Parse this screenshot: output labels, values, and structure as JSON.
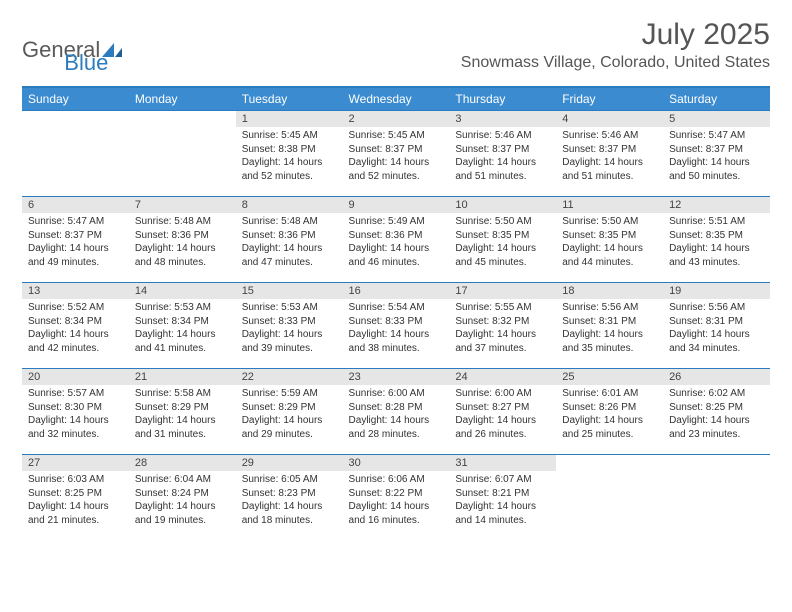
{
  "logo": {
    "general": "General",
    "blue": "Blue"
  },
  "title": "July 2025",
  "location": "Snowmass Village, Colorado, United States",
  "colors": {
    "header_bg": "#3a8bd0",
    "border": "#2b7bbf",
    "daynum_bg": "#e6e6e6"
  },
  "dayNames": [
    "Sunday",
    "Monday",
    "Tuesday",
    "Wednesday",
    "Thursday",
    "Friday",
    "Saturday"
  ],
  "weeks": [
    [
      {
        "n": "",
        "sr": "",
        "ss": "",
        "dl": ""
      },
      {
        "n": "",
        "sr": "",
        "ss": "",
        "dl": ""
      },
      {
        "n": "1",
        "sr": "Sunrise: 5:45 AM",
        "ss": "Sunset: 8:38 PM",
        "dl": "Daylight: 14 hours and 52 minutes."
      },
      {
        "n": "2",
        "sr": "Sunrise: 5:45 AM",
        "ss": "Sunset: 8:37 PM",
        "dl": "Daylight: 14 hours and 52 minutes."
      },
      {
        "n": "3",
        "sr": "Sunrise: 5:46 AM",
        "ss": "Sunset: 8:37 PM",
        "dl": "Daylight: 14 hours and 51 minutes."
      },
      {
        "n": "4",
        "sr": "Sunrise: 5:46 AM",
        "ss": "Sunset: 8:37 PM",
        "dl": "Daylight: 14 hours and 51 minutes."
      },
      {
        "n": "5",
        "sr": "Sunrise: 5:47 AM",
        "ss": "Sunset: 8:37 PM",
        "dl": "Daylight: 14 hours and 50 minutes."
      }
    ],
    [
      {
        "n": "6",
        "sr": "Sunrise: 5:47 AM",
        "ss": "Sunset: 8:37 PM",
        "dl": "Daylight: 14 hours and 49 minutes."
      },
      {
        "n": "7",
        "sr": "Sunrise: 5:48 AM",
        "ss": "Sunset: 8:36 PM",
        "dl": "Daylight: 14 hours and 48 minutes."
      },
      {
        "n": "8",
        "sr": "Sunrise: 5:48 AM",
        "ss": "Sunset: 8:36 PM",
        "dl": "Daylight: 14 hours and 47 minutes."
      },
      {
        "n": "9",
        "sr": "Sunrise: 5:49 AM",
        "ss": "Sunset: 8:36 PM",
        "dl": "Daylight: 14 hours and 46 minutes."
      },
      {
        "n": "10",
        "sr": "Sunrise: 5:50 AM",
        "ss": "Sunset: 8:35 PM",
        "dl": "Daylight: 14 hours and 45 minutes."
      },
      {
        "n": "11",
        "sr": "Sunrise: 5:50 AM",
        "ss": "Sunset: 8:35 PM",
        "dl": "Daylight: 14 hours and 44 minutes."
      },
      {
        "n": "12",
        "sr": "Sunrise: 5:51 AM",
        "ss": "Sunset: 8:35 PM",
        "dl": "Daylight: 14 hours and 43 minutes."
      }
    ],
    [
      {
        "n": "13",
        "sr": "Sunrise: 5:52 AM",
        "ss": "Sunset: 8:34 PM",
        "dl": "Daylight: 14 hours and 42 minutes."
      },
      {
        "n": "14",
        "sr": "Sunrise: 5:53 AM",
        "ss": "Sunset: 8:34 PM",
        "dl": "Daylight: 14 hours and 41 minutes."
      },
      {
        "n": "15",
        "sr": "Sunrise: 5:53 AM",
        "ss": "Sunset: 8:33 PM",
        "dl": "Daylight: 14 hours and 39 minutes."
      },
      {
        "n": "16",
        "sr": "Sunrise: 5:54 AM",
        "ss": "Sunset: 8:33 PM",
        "dl": "Daylight: 14 hours and 38 minutes."
      },
      {
        "n": "17",
        "sr": "Sunrise: 5:55 AM",
        "ss": "Sunset: 8:32 PM",
        "dl": "Daylight: 14 hours and 37 minutes."
      },
      {
        "n": "18",
        "sr": "Sunrise: 5:56 AM",
        "ss": "Sunset: 8:31 PM",
        "dl": "Daylight: 14 hours and 35 minutes."
      },
      {
        "n": "19",
        "sr": "Sunrise: 5:56 AM",
        "ss": "Sunset: 8:31 PM",
        "dl": "Daylight: 14 hours and 34 minutes."
      }
    ],
    [
      {
        "n": "20",
        "sr": "Sunrise: 5:57 AM",
        "ss": "Sunset: 8:30 PM",
        "dl": "Daylight: 14 hours and 32 minutes."
      },
      {
        "n": "21",
        "sr": "Sunrise: 5:58 AM",
        "ss": "Sunset: 8:29 PM",
        "dl": "Daylight: 14 hours and 31 minutes."
      },
      {
        "n": "22",
        "sr": "Sunrise: 5:59 AM",
        "ss": "Sunset: 8:29 PM",
        "dl": "Daylight: 14 hours and 29 minutes."
      },
      {
        "n": "23",
        "sr": "Sunrise: 6:00 AM",
        "ss": "Sunset: 8:28 PM",
        "dl": "Daylight: 14 hours and 28 minutes."
      },
      {
        "n": "24",
        "sr": "Sunrise: 6:00 AM",
        "ss": "Sunset: 8:27 PM",
        "dl": "Daylight: 14 hours and 26 minutes."
      },
      {
        "n": "25",
        "sr": "Sunrise: 6:01 AM",
        "ss": "Sunset: 8:26 PM",
        "dl": "Daylight: 14 hours and 25 minutes."
      },
      {
        "n": "26",
        "sr": "Sunrise: 6:02 AM",
        "ss": "Sunset: 8:25 PM",
        "dl": "Daylight: 14 hours and 23 minutes."
      }
    ],
    [
      {
        "n": "27",
        "sr": "Sunrise: 6:03 AM",
        "ss": "Sunset: 8:25 PM",
        "dl": "Daylight: 14 hours and 21 minutes."
      },
      {
        "n": "28",
        "sr": "Sunrise: 6:04 AM",
        "ss": "Sunset: 8:24 PM",
        "dl": "Daylight: 14 hours and 19 minutes."
      },
      {
        "n": "29",
        "sr": "Sunrise: 6:05 AM",
        "ss": "Sunset: 8:23 PM",
        "dl": "Daylight: 14 hours and 18 minutes."
      },
      {
        "n": "30",
        "sr": "Sunrise: 6:06 AM",
        "ss": "Sunset: 8:22 PM",
        "dl": "Daylight: 14 hours and 16 minutes."
      },
      {
        "n": "31",
        "sr": "Sunrise: 6:07 AM",
        "ss": "Sunset: 8:21 PM",
        "dl": "Daylight: 14 hours and 14 minutes."
      },
      {
        "n": "",
        "sr": "",
        "ss": "",
        "dl": ""
      },
      {
        "n": "",
        "sr": "",
        "ss": "",
        "dl": ""
      }
    ]
  ]
}
